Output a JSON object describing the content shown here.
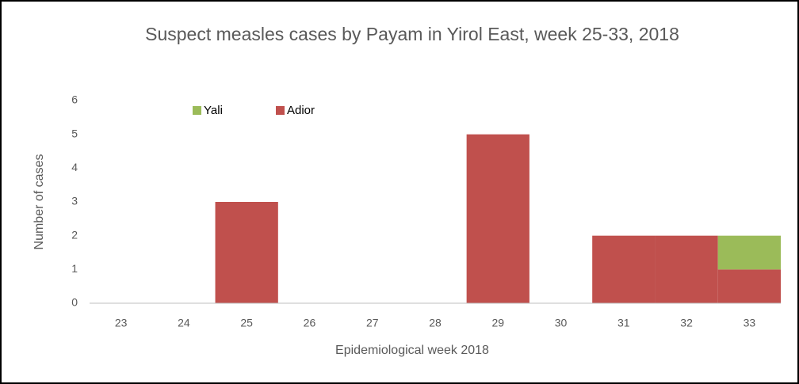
{
  "chart_data": {
    "type": "stacked_bar",
    "title": "Suspect measles cases by Payam in Yirol East, week 25-33, 2018",
    "x_label": "Epidemiological week 2018",
    "y_label": "Number of cases",
    "categories": [
      "23",
      "24",
      "25",
      "26",
      "27",
      "28",
      "29",
      "30",
      "31",
      "32",
      "33"
    ],
    "series": [
      {
        "name": "Adior",
        "color": "#c0504d",
        "values": [
          0,
          0,
          3,
          0,
          0,
          0,
          5,
          0,
          2,
          2,
          1
        ]
      },
      {
        "name": "Yali",
        "color": "#9bbb59",
        "values": [
          0,
          0,
          0,
          0,
          0,
          0,
          0,
          0,
          0,
          0,
          1
        ]
      }
    ],
    "ylim": [
      0,
      6
    ],
    "yticks": [
      0,
      1,
      2,
      3,
      4,
      5,
      6
    ],
    "grid": false,
    "legend": "top-left"
  }
}
